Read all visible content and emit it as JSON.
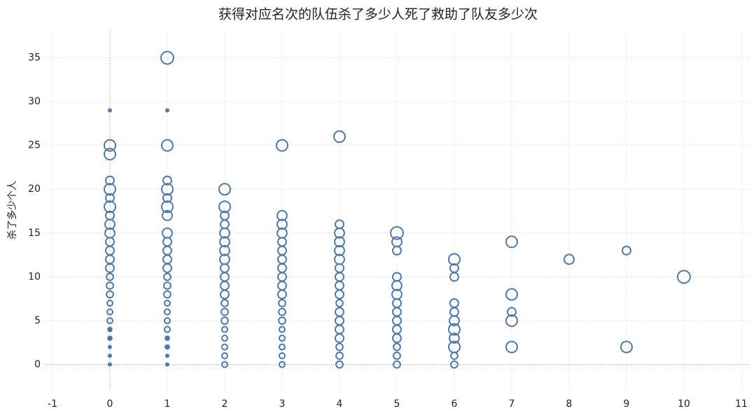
{
  "chart_data": {
    "type": "scatter",
    "title": "获得对应名次的队伍杀了多少人死了救助了队友多少次",
    "y_label": "杀了多少个人",
    "color": "#4e79a7",
    "xlim": [
      -1,
      11
    ],
    "xticks": [
      -1,
      0,
      1,
      2,
      3,
      4,
      5,
      6,
      7,
      8,
      9,
      10,
      11
    ],
    "ylim": [
      -3,
      38
    ],
    "yticks": [
      0,
      5,
      10,
      15,
      20,
      25,
      30,
      35
    ],
    "grid": true,
    "x": [
      0,
      0,
      0,
      0,
      0,
      0,
      0,
      0,
      0,
      0,
      0,
      0,
      0,
      0,
      0,
      0,
      0,
      0,
      0,
      0,
      0,
      0,
      0,
      0,
      0,
      1,
      1,
      1,
      1,
      1,
      1,
      1,
      1,
      1,
      1,
      1,
      1,
      1,
      1,
      1,
      1,
      1,
      1,
      1,
      1,
      1,
      1,
      1,
      1,
      2,
      2,
      2,
      2,
      2,
      2,
      2,
      2,
      2,
      2,
      2,
      2,
      2,
      2,
      2,
      2,
      2,
      2,
      2,
      2,
      3,
      3,
      3,
      3,
      3,
      3,
      3,
      3,
      3,
      3,
      3,
      3,
      3,
      3,
      3,
      3,
      3,
      3,
      3,
      4,
      4,
      4,
      4,
      4,
      4,
      4,
      4,
      4,
      4,
      4,
      4,
      4,
      4,
      4,
      4,
      4,
      4,
      5,
      5,
      5,
      5,
      5,
      5,
      5,
      5,
      5,
      5,
      5,
      5,
      5,
      5,
      6,
      6,
      6,
      6,
      6,
      6,
      6,
      6,
      6,
      6,
      6,
      7,
      7,
      7,
      7,
      7,
      8,
      9,
      9,
      10
    ],
    "y": [
      29,
      25,
      24,
      21,
      20,
      19,
      18,
      17,
      16,
      15,
      14,
      13,
      12,
      11,
      10,
      9,
      8,
      7,
      6,
      5,
      4,
      3,
      2,
      1,
      0,
      35,
      29,
      25,
      21,
      20,
      19,
      18,
      17,
      15,
      14,
      13,
      12,
      11,
      10,
      9,
      8,
      7,
      6,
      5,
      4,
      3,
      2,
      1,
      0,
      20,
      18,
      17,
      16,
      15,
      14,
      13,
      12,
      11,
      10,
      9,
      8,
      7,
      6,
      5,
      4,
      3,
      2,
      1,
      0,
      25,
      17,
      16,
      15,
      14,
      13,
      12,
      11,
      10,
      9,
      8,
      7,
      6,
      5,
      4,
      3,
      2,
      1,
      0,
      26,
      16,
      15,
      14,
      13,
      12,
      11,
      10,
      9,
      8,
      7,
      6,
      5,
      4,
      3,
      2,
      1,
      0,
      15,
      14,
      13,
      10,
      9,
      8,
      7,
      6,
      5,
      4,
      3,
      2,
      1,
      0,
      12,
      11,
      10,
      7,
      6,
      5,
      4,
      3,
      2,
      1,
      0,
      14,
      8,
      6,
      5,
      2,
      12,
      13,
      2,
      10
    ],
    "sizes": [
      1,
      16,
      16,
      9,
      16,
      9,
      16,
      9,
      12,
      12,
      9,
      9,
      9,
      9,
      6,
      6,
      6,
      4,
      4,
      4,
      2,
      2,
      1,
      1,
      1,
      20,
      1,
      16,
      9,
      16,
      9,
      16,
      12,
      12,
      9,
      9,
      9,
      9,
      6,
      6,
      6,
      4,
      4,
      4,
      4,
      2,
      2,
      1,
      1,
      16,
      16,
      9,
      9,
      12,
      12,
      12,
      12,
      9,
      9,
      9,
      9,
      6,
      6,
      6,
      4,
      4,
      4,
      4,
      4,
      16,
      12,
      12,
      12,
      9,
      9,
      9,
      9,
      9,
      9,
      9,
      6,
      6,
      6,
      4,
      4,
      4,
      4,
      4,
      16,
      9,
      12,
      12,
      12,
      12,
      9,
      9,
      9,
      9,
      6,
      9,
      9,
      9,
      9,
      6,
      6,
      6,
      20,
      12,
      9,
      9,
      12,
      12,
      9,
      9,
      9,
      9,
      9,
      6,
      6,
      6,
      16,
      9,
      9,
      9,
      9,
      12,
      16,
      12,
      16,
      6,
      6,
      16,
      16,
      9,
      16,
      16,
      12,
      9,
      16,
      20
    ]
  }
}
